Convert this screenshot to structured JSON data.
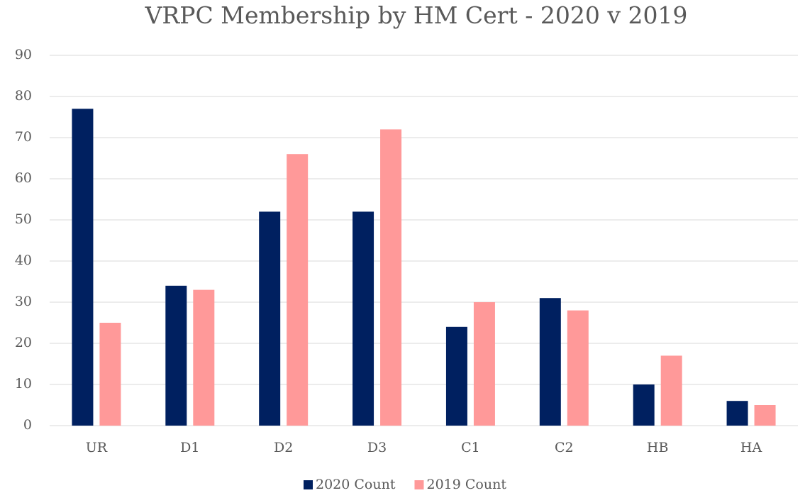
{
  "chart_data": {
    "type": "bar",
    "title": "VRPC Membership by HM Cert - 2020 v 2019",
    "categories": [
      "UR",
      "D1",
      "D2",
      "D3",
      "C1",
      "C2",
      "HB",
      "HA"
    ],
    "series": [
      {
        "name": "2020 Count",
        "color": "#002060",
        "values": [
          77,
          34,
          52,
          52,
          24,
          31,
          10,
          6
        ]
      },
      {
        "name": "2019 Count",
        "color": "#ff9999",
        "values": [
          25,
          33,
          66,
          72,
          30,
          28,
          17,
          5
        ]
      }
    ],
    "ylim": [
      0,
      90
    ],
    "yticks": [
      0,
      10,
      20,
      30,
      40,
      50,
      60,
      70,
      80,
      90
    ],
    "grid": true,
    "legend": "bottom"
  }
}
